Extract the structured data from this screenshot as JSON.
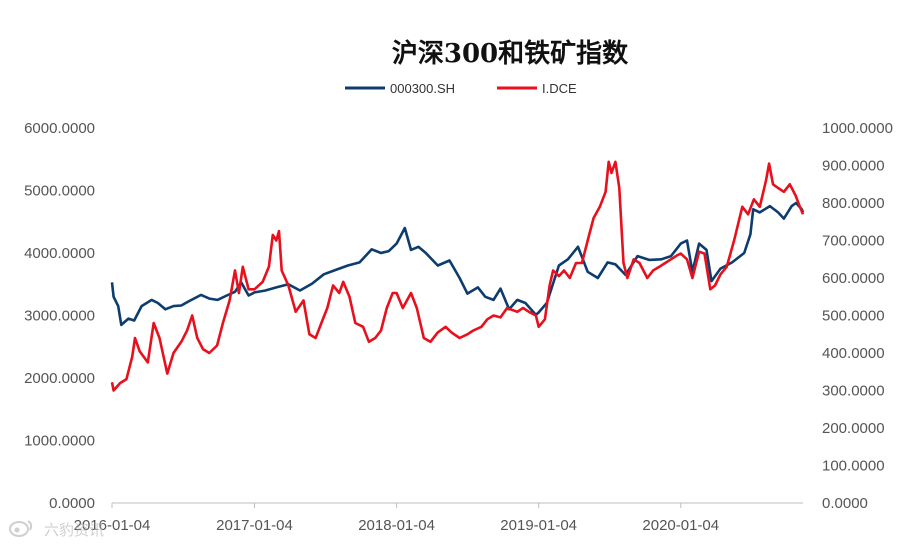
{
  "chart_data": {
    "type": "line",
    "title": "沪深300和铁矿指数",
    "dual_axis": true,
    "y_left": {
      "lim": [
        0,
        6000
      ],
      "ticks": [
        "0.0000",
        "1000.0000",
        "2000.0000",
        "3000.0000",
        "4000.0000",
        "5000.0000",
        "6000.0000"
      ]
    },
    "y_right": {
      "lim": [
        0,
        1000
      ],
      "ticks": [
        "0.0000",
        "100.0000",
        "200.0000",
        "300.0000",
        "400.0000",
        "500.0000",
        "600.0000",
        "700.0000",
        "800.0000",
        "900.0000",
        "1000.0000"
      ]
    },
    "x_ticks": [
      "2016-01-04",
      "2017-01-04",
      "2018-01-04",
      "2019-01-04",
      "2020-01-04"
    ],
    "legend_position": "top-center",
    "grid": false,
    "series": [
      {
        "name": "000300.SH",
        "axis": "left",
        "color": "#0d3d6e",
        "points": [
          [
            "2016-01-04",
            3530
          ],
          [
            "2016-01-08",
            3300
          ],
          [
            "2016-01-20",
            3150
          ],
          [
            "2016-01-28",
            2850
          ],
          [
            "2016-02-15",
            2950
          ],
          [
            "2016-03-01",
            2920
          ],
          [
            "2016-03-20",
            3150
          ],
          [
            "2016-04-15",
            3250
          ],
          [
            "2016-05-01",
            3200
          ],
          [
            "2016-05-20",
            3100
          ],
          [
            "2016-06-10",
            3150
          ],
          [
            "2016-06-30",
            3160
          ],
          [
            "2016-07-20",
            3230
          ],
          [
            "2016-08-20",
            3330
          ],
          [
            "2016-09-10",
            3270
          ],
          [
            "2016-10-01",
            3250
          ],
          [
            "2016-10-25",
            3320
          ],
          [
            "2016-11-15",
            3380
          ],
          [
            "2016-12-01",
            3530
          ],
          [
            "2016-12-20",
            3320
          ],
          [
            "2017-01-04",
            3370
          ],
          [
            "2017-02-01",
            3400
          ],
          [
            "2017-03-01",
            3450
          ],
          [
            "2017-04-01",
            3500
          ],
          [
            "2017-05-01",
            3400
          ],
          [
            "2017-06-01",
            3510
          ],
          [
            "2017-07-01",
            3660
          ],
          [
            "2017-08-01",
            3730
          ],
          [
            "2017-09-01",
            3800
          ],
          [
            "2017-10-01",
            3850
          ],
          [
            "2017-11-01",
            4060
          ],
          [
            "2017-11-25",
            4000
          ],
          [
            "2017-12-15",
            4030
          ],
          [
            "2018-01-04",
            4150
          ],
          [
            "2018-01-25",
            4400
          ],
          [
            "2018-02-10",
            4050
          ],
          [
            "2018-03-01",
            4100
          ],
          [
            "2018-03-20",
            4000
          ],
          [
            "2018-04-20",
            3800
          ],
          [
            "2018-05-20",
            3880
          ],
          [
            "2018-06-15",
            3600
          ],
          [
            "2018-07-05",
            3350
          ],
          [
            "2018-08-01",
            3450
          ],
          [
            "2018-08-20",
            3300
          ],
          [
            "2018-09-10",
            3250
          ],
          [
            "2018-09-28",
            3430
          ],
          [
            "2018-10-20",
            3100
          ],
          [
            "2018-11-10",
            3250
          ],
          [
            "2018-12-01",
            3200
          ],
          [
            "2018-12-28",
            3010
          ],
          [
            "2019-01-04",
            3050
          ],
          [
            "2019-01-25",
            3200
          ],
          [
            "2019-02-25",
            3800
          ],
          [
            "2019-03-20",
            3900
          ],
          [
            "2019-04-15",
            4100
          ],
          [
            "2019-05-10",
            3700
          ],
          [
            "2019-06-05",
            3600
          ],
          [
            "2019-06-30",
            3850
          ],
          [
            "2019-07-20",
            3820
          ],
          [
            "2019-08-15",
            3650
          ],
          [
            "2019-09-15",
            3950
          ],
          [
            "2019-10-15",
            3890
          ],
          [
            "2019-11-15",
            3900
          ],
          [
            "2019-12-10",
            3950
          ],
          [
            "2020-01-04",
            4150
          ],
          [
            "2020-01-20",
            4200
          ],
          [
            "2020-02-03",
            3700
          ],
          [
            "2020-02-20",
            4150
          ],
          [
            "2020-03-10",
            4050
          ],
          [
            "2020-03-23",
            3550
          ],
          [
            "2020-04-15",
            3750
          ],
          [
            "2020-05-15",
            3850
          ],
          [
            "2020-06-15",
            4000
          ],
          [
            "2020-07-01",
            4300
          ],
          [
            "2020-07-08",
            4700
          ],
          [
            "2020-07-25",
            4650
          ],
          [
            "2020-08-20",
            4750
          ],
          [
            "2020-09-10",
            4650
          ],
          [
            "2020-09-25",
            4550
          ],
          [
            "2020-10-15",
            4750
          ],
          [
            "2020-10-26",
            4800
          ],
          [
            "2020-11-10",
            4700
          ],
          [
            "2020-11-13",
            4650
          ]
        ]
      },
      {
        "name": "I.DCE",
        "axis": "right",
        "color": "#e8101c",
        "points": [
          [
            "2016-01-04",
            322
          ],
          [
            "2016-01-08",
            300
          ],
          [
            "2016-01-25",
            320
          ],
          [
            "2016-02-10",
            330
          ],
          [
            "2016-02-25",
            390
          ],
          [
            "2016-03-03",
            440
          ],
          [
            "2016-03-15",
            405
          ],
          [
            "2016-04-05",
            375
          ],
          [
            "2016-04-20",
            480
          ],
          [
            "2016-05-05",
            440
          ],
          [
            "2016-05-25",
            345
          ],
          [
            "2016-06-10",
            400
          ],
          [
            "2016-06-30",
            430
          ],
          [
            "2016-07-15",
            460
          ],
          [
            "2016-07-28",
            500
          ],
          [
            "2016-08-10",
            440
          ],
          [
            "2016-08-25",
            410
          ],
          [
            "2016-09-10",
            400
          ],
          [
            "2016-09-30",
            420
          ],
          [
            "2016-10-15",
            480
          ],
          [
            "2016-11-01",
            540
          ],
          [
            "2016-11-15",
            620
          ],
          [
            "2016-11-25",
            560
          ],
          [
            "2016-12-05",
            630
          ],
          [
            "2016-12-20",
            570
          ],
          [
            "2017-01-04",
            570
          ],
          [
            "2017-01-25",
            590
          ],
          [
            "2017-02-10",
            630
          ],
          [
            "2017-02-20",
            715
          ],
          [
            "2017-03-01",
            700
          ],
          [
            "2017-03-08",
            725
          ],
          [
            "2017-03-15",
            620
          ],
          [
            "2017-04-01",
            580
          ],
          [
            "2017-04-20",
            510
          ],
          [
            "2017-05-10",
            540
          ],
          [
            "2017-05-25",
            450
          ],
          [
            "2017-06-10",
            440
          ],
          [
            "2017-06-25",
            480
          ],
          [
            "2017-07-10",
            520
          ],
          [
            "2017-07-25",
            580
          ],
          [
            "2017-08-10",
            560
          ],
          [
            "2017-08-20",
            590
          ],
          [
            "2017-09-05",
            550
          ],
          [
            "2017-09-20",
            480
          ],
          [
            "2017-10-10",
            470
          ],
          [
            "2017-10-25",
            430
          ],
          [
            "2017-11-10",
            440
          ],
          [
            "2017-11-25",
            460
          ],
          [
            "2017-12-10",
            520
          ],
          [
            "2017-12-25",
            560
          ],
          [
            "2018-01-04",
            560
          ],
          [
            "2018-01-20",
            520
          ],
          [
            "2018-02-10",
            560
          ],
          [
            "2018-02-25",
            520
          ],
          [
            "2018-03-15",
            440
          ],
          [
            "2018-04-01",
            430
          ],
          [
            "2018-04-20",
            455
          ],
          [
            "2018-05-10",
            470
          ],
          [
            "2018-05-25",
            455
          ],
          [
            "2018-06-15",
            440
          ],
          [
            "2018-07-05",
            450
          ],
          [
            "2018-07-20",
            460
          ],
          [
            "2018-08-10",
            470
          ],
          [
            "2018-08-25",
            490
          ],
          [
            "2018-09-10",
            500
          ],
          [
            "2018-09-28",
            495
          ],
          [
            "2018-10-15",
            520
          ],
          [
            "2018-11-10",
            510
          ],
          [
            "2018-11-25",
            520
          ],
          [
            "2018-12-10",
            510
          ],
          [
            "2018-12-28",
            500
          ],
          [
            "2019-01-04",
            470
          ],
          [
            "2019-01-20",
            490
          ],
          [
            "2019-02-01",
            580
          ],
          [
            "2019-02-10",
            620
          ],
          [
            "2019-02-25",
            605
          ],
          [
            "2019-03-10",
            620
          ],
          [
            "2019-03-25",
            600
          ],
          [
            "2019-04-10",
            640
          ],
          [
            "2019-04-25",
            640
          ],
          [
            "2019-05-10",
            700
          ],
          [
            "2019-05-25",
            760
          ],
          [
            "2019-06-10",
            790
          ],
          [
            "2019-06-25",
            830
          ],
          [
            "2019-07-03",
            910
          ],
          [
            "2019-07-10",
            880
          ],
          [
            "2019-07-20",
            910
          ],
          [
            "2019-07-30",
            840
          ],
          [
            "2019-08-10",
            640
          ],
          [
            "2019-08-20",
            600
          ],
          [
            "2019-09-05",
            650
          ],
          [
            "2019-09-20",
            640
          ],
          [
            "2019-10-10",
            600
          ],
          [
            "2019-10-25",
            620
          ],
          [
            "2019-11-10",
            630
          ],
          [
            "2019-11-25",
            640
          ],
          [
            "2019-12-10",
            650
          ],
          [
            "2019-12-25",
            660
          ],
          [
            "2020-01-04",
            665
          ],
          [
            "2020-01-20",
            650
          ],
          [
            "2020-02-03",
            600
          ],
          [
            "2020-02-20",
            670
          ],
          [
            "2020-03-05",
            665
          ],
          [
            "2020-03-20",
            570
          ],
          [
            "2020-04-01",
            580
          ],
          [
            "2020-04-15",
            610
          ],
          [
            "2020-05-01",
            630
          ],
          [
            "2020-05-20",
            700
          ],
          [
            "2020-06-10",
            790
          ],
          [
            "2020-06-25",
            770
          ],
          [
            "2020-07-10",
            810
          ],
          [
            "2020-07-25",
            790
          ],
          [
            "2020-08-10",
            860
          ],
          [
            "2020-08-18",
            905
          ],
          [
            "2020-08-28",
            850
          ],
          [
            "2020-09-10",
            840
          ],
          [
            "2020-09-25",
            830
          ],
          [
            "2020-10-10",
            850
          ],
          [
            "2020-10-25",
            820
          ],
          [
            "2020-11-05",
            790
          ],
          [
            "2020-11-13",
            770
          ]
        ]
      }
    ]
  },
  "watermark": {
    "icon": "weibo-icon",
    "text": "六豹资讯"
  }
}
